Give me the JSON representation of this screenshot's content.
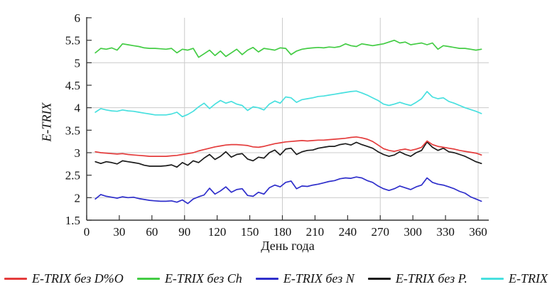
{
  "chart_data": {
    "type": "line",
    "title": "",
    "xlabel": "День года",
    "ylabel": "E-TRIX",
    "xlim": [
      0,
      368
    ],
    "ylim": [
      1.5,
      6
    ],
    "x_ticks": [
      0,
      30,
      60,
      90,
      120,
      150,
      180,
      210,
      240,
      270,
      300,
      330,
      360
    ],
    "y_ticks": [
      1.5,
      2,
      2.5,
      3,
      3.5,
      4,
      4.5,
      5,
      5.5,
      6
    ],
    "x_gridlines": [
      90,
      180,
      270,
      360
    ],
    "y_gridlines": [
      2,
      3,
      4,
      5
    ],
    "grid": "major",
    "legend_position": "bottom",
    "axis_color": "#333333",
    "gridline_color": "#cccccc",
    "x": [
      8,
      13,
      18,
      23,
      28,
      33,
      38,
      43,
      48,
      53,
      58,
      63,
      68,
      73,
      78,
      83,
      88,
      93,
      98,
      103,
      108,
      113,
      118,
      123,
      128,
      133,
      138,
      143,
      148,
      153,
      158,
      163,
      168,
      173,
      178,
      183,
      188,
      193,
      198,
      203,
      208,
      213,
      218,
      223,
      228,
      233,
      238,
      243,
      248,
      253,
      258,
      263,
      268,
      273,
      278,
      283,
      288,
      293,
      298,
      303,
      308,
      313,
      318,
      323,
      328,
      333,
      338,
      343,
      348,
      353,
      358,
      363
    ],
    "series": [
      {
        "id": "etrix-bez-dpo",
        "name": "E-TRIX без D%O",
        "color": "#e43c3c",
        "values": [
          3.02,
          3.0,
          2.99,
          2.98,
          2.97,
          2.98,
          2.96,
          2.95,
          2.94,
          2.93,
          2.92,
          2.92,
          2.92,
          2.92,
          2.93,
          2.94,
          2.96,
          2.98,
          3.0,
          3.04,
          3.07,
          3.1,
          3.13,
          3.15,
          3.17,
          3.18,
          3.18,
          3.17,
          3.16,
          3.13,
          3.12,
          3.14,
          3.17,
          3.2,
          3.22,
          3.24,
          3.25,
          3.26,
          3.27,
          3.26,
          3.27,
          3.28,
          3.28,
          3.29,
          3.3,
          3.31,
          3.32,
          3.34,
          3.35,
          3.33,
          3.3,
          3.25,
          3.17,
          3.09,
          3.05,
          3.03,
          3.06,
          3.08,
          3.05,
          3.08,
          3.12,
          3.26,
          3.18,
          3.14,
          3.12,
          3.1,
          3.08,
          3.05,
          3.03,
          3.01,
          2.99,
          2.95
        ]
      },
      {
        "id": "etrix-bez-ch",
        "name": "E-TRIX без Ch",
        "color": "#43cc44",
        "values": [
          5.22,
          5.32,
          5.3,
          5.33,
          5.28,
          5.42,
          5.4,
          5.38,
          5.36,
          5.33,
          5.32,
          5.32,
          5.31,
          5.3,
          5.32,
          5.22,
          5.3,
          5.28,
          5.32,
          5.12,
          5.2,
          5.28,
          5.16,
          5.26,
          5.14,
          5.22,
          5.3,
          5.18,
          5.28,
          5.34,
          5.24,
          5.32,
          5.3,
          5.28,
          5.33,
          5.32,
          5.18,
          5.26,
          5.3,
          5.32,
          5.33,
          5.34,
          5.33,
          5.35,
          5.34,
          5.36,
          5.42,
          5.38,
          5.36,
          5.42,
          5.4,
          5.38,
          5.4,
          5.42,
          5.46,
          5.5,
          5.44,
          5.46,
          5.4,
          5.42,
          5.44,
          5.4,
          5.44,
          5.3,
          5.38,
          5.36,
          5.34,
          5.32,
          5.32,
          5.3,
          5.28,
          5.3
        ]
      },
      {
        "id": "etrix-bez-n",
        "name": "E-TRIX без N",
        "color": "#2f2fcb",
        "values": [
          1.97,
          2.07,
          2.03,
          2.01,
          1.99,
          2.02,
          2.0,
          2.01,
          1.98,
          1.96,
          1.94,
          1.93,
          1.92,
          1.92,
          1.93,
          1.9,
          1.95,
          1.87,
          1.97,
          2.02,
          2.06,
          2.21,
          2.08,
          2.15,
          2.24,
          2.12,
          2.18,
          2.2,
          2.05,
          2.03,
          2.12,
          2.08,
          2.22,
          2.28,
          2.24,
          2.34,
          2.37,
          2.2,
          2.26,
          2.25,
          2.28,
          2.3,
          2.33,
          2.36,
          2.38,
          2.42,
          2.44,
          2.43,
          2.46,
          2.44,
          2.38,
          2.34,
          2.26,
          2.2,
          2.16,
          2.2,
          2.26,
          2.22,
          2.18,
          2.24,
          2.28,
          2.44,
          2.34,
          2.3,
          2.28,
          2.24,
          2.2,
          2.14,
          2.1,
          2.02,
          1.97,
          1.92
        ]
      },
      {
        "id": "etrix-bez-p",
        "name": "E-TRIX без P.",
        "color": "#1b1b1b",
        "values": [
          2.8,
          2.76,
          2.8,
          2.78,
          2.75,
          2.82,
          2.8,
          2.78,
          2.76,
          2.72,
          2.7,
          2.7,
          2.7,
          2.71,
          2.73,
          2.68,
          2.78,
          2.72,
          2.82,
          2.78,
          2.88,
          2.96,
          2.85,
          2.92,
          3.02,
          2.9,
          2.96,
          2.98,
          2.86,
          2.82,
          2.9,
          2.88,
          3.0,
          3.06,
          2.95,
          3.08,
          3.1,
          2.96,
          3.02,
          3.05,
          3.06,
          3.1,
          3.12,
          3.14,
          3.14,
          3.18,
          3.2,
          3.17,
          3.23,
          3.18,
          3.14,
          3.1,
          3.02,
          2.96,
          2.92,
          2.95,
          3.02,
          2.96,
          2.92,
          3.0,
          3.05,
          3.24,
          3.12,
          3.05,
          3.1,
          3.02,
          3.0,
          2.96,
          2.92,
          2.86,
          2.8,
          2.76
        ]
      },
      {
        "id": "etrix",
        "name": "E-TRIX",
        "color": "#48e0df",
        "values": [
          3.9,
          3.98,
          3.95,
          3.93,
          3.92,
          3.95,
          3.93,
          3.92,
          3.9,
          3.88,
          3.86,
          3.84,
          3.84,
          3.84,
          3.86,
          3.9,
          3.8,
          3.85,
          3.92,
          4.02,
          4.1,
          3.98,
          4.08,
          4.16,
          4.1,
          4.14,
          4.08,
          4.05,
          3.94,
          4.02,
          4.0,
          3.95,
          4.08,
          4.15,
          4.1,
          4.24,
          4.22,
          4.12,
          4.18,
          4.2,
          4.22,
          4.25,
          4.26,
          4.28,
          4.3,
          4.32,
          4.34,
          4.36,
          4.37,
          4.33,
          4.28,
          4.22,
          4.16,
          4.08,
          4.05,
          4.08,
          4.12,
          4.08,
          4.05,
          4.12,
          4.2,
          4.36,
          4.24,
          4.2,
          4.22,
          4.14,
          4.1,
          4.05,
          4.0,
          3.96,
          3.92,
          3.87
        ]
      }
    ]
  }
}
